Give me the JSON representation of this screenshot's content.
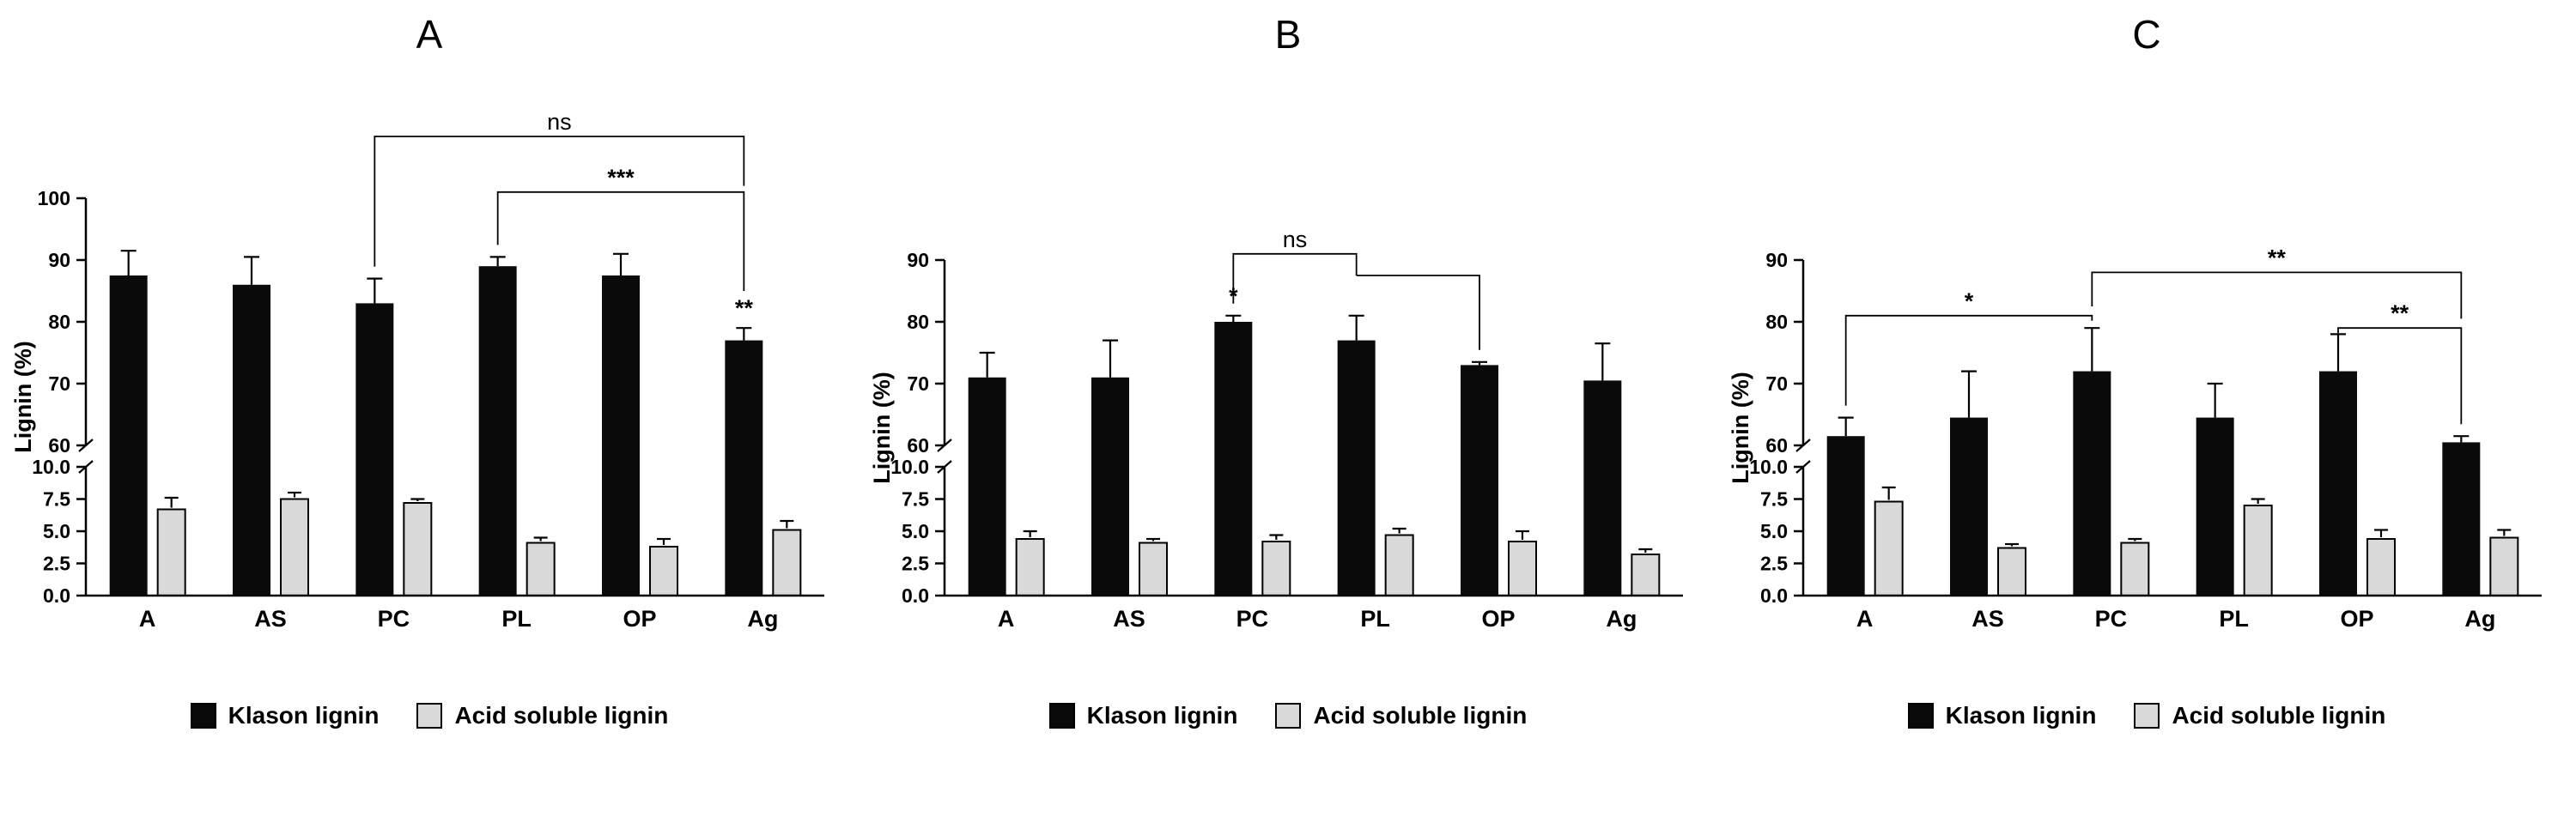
{
  "page": {
    "background": "#ffffff"
  },
  "colors": {
    "klason": "#0a0a0a",
    "acid_soluble": "#d9d9d9",
    "axis": "#000000"
  },
  "chart_data": [
    {
      "type": "bar",
      "title": "A",
      "ylabel": "Lignin (%)",
      "categories": [
        "A",
        "AS",
        "PC",
        "PL",
        "OP",
        "Ag"
      ],
      "broken_axis": {
        "lower": {
          "range": [
            0,
            10
          ],
          "ticks": [
            0,
            2.5,
            5,
            7.5,
            10
          ],
          "tick_labels": [
            "0.0",
            "2.5",
            "5.0",
            "7.5",
            "10.0"
          ]
        },
        "upper": {
          "range": [
            60,
            100
          ],
          "ticks": [
            60,
            70,
            80,
            90,
            100
          ],
          "tick_labels": [
            "60",
            "70",
            "80",
            "90",
            "100"
          ]
        }
      },
      "series": [
        {
          "name": "Klason lignin",
          "axis": "upper",
          "color": "#0a0a0a",
          "values": [
            87.5,
            86,
            83,
            89,
            87.5,
            77
          ],
          "errors": [
            4,
            4.5,
            4,
            1.5,
            3.5,
            2
          ]
        },
        {
          "name": "Acid soluble lignin",
          "axis": "lower",
          "color": "#d9d9d9",
          "values": [
            6.7,
            7.5,
            7.2,
            4.1,
            3.8,
            5.1
          ],
          "errors": [
            0.9,
            0.5,
            0.3,
            0.4,
            0.6,
            0.7
          ]
        }
      ],
      "bar_labels": [
        {
          "category": "Ag",
          "text": "**"
        }
      ],
      "brackets": [
        {
          "from": "PC",
          "to": "Ag",
          "label": "ns",
          "y": 110,
          "to_drop_until": 102
        },
        {
          "from": "PL",
          "to": "Ag",
          "label": "***",
          "y": 101,
          "to_drop_until": 85
        }
      ],
      "legend": [
        "Klason lignin",
        "Acid soluble lignin"
      ]
    },
    {
      "type": "bar",
      "title": "B",
      "ylabel": "Lignin (%)",
      "categories": [
        "A",
        "AS",
        "PC",
        "PL",
        "OP",
        "Ag"
      ],
      "broken_axis": {
        "lower": {
          "range": [
            0,
            10
          ],
          "ticks": [
            0,
            2.5,
            5,
            7.5,
            10
          ],
          "tick_labels": [
            "0.0",
            "2.5",
            "5.0",
            "7.5",
            "10.0"
          ]
        },
        "upper": {
          "range": [
            60,
            90
          ],
          "ticks": [
            60,
            70,
            80,
            90
          ],
          "tick_labels": [
            "60",
            "70",
            "80",
            "90"
          ]
        }
      },
      "series": [
        {
          "name": "Klason lignin",
          "axis": "upper",
          "color": "#0a0a0a",
          "values": [
            71,
            71,
            80,
            77,
            73,
            70.5
          ],
          "errors": [
            4,
            6,
            1,
            4,
            0.5,
            6
          ]
        },
        {
          "name": "Acid soluble lignin",
          "axis": "lower",
          "color": "#d9d9d9",
          "values": [
            4.4,
            4.1,
            4.2,
            4.7,
            4.2,
            3.2
          ],
          "errors": [
            0.6,
            0.3,
            0.5,
            0.5,
            0.8,
            0.4
          ]
        }
      ],
      "bar_labels": [
        {
          "category": "PC",
          "text": "*"
        }
      ],
      "brackets": [
        {
          "from": "PC",
          "to": "PL",
          "label": "ns",
          "y": 91,
          "to_drop_until": 87.5
        },
        {
          "from": "PL",
          "to": "OP",
          "label": "",
          "y": 87.5,
          "from_drop_until": 87.5
        }
      ],
      "legend": [
        "Klason lignin",
        "Acid soluble lignin"
      ]
    },
    {
      "type": "bar",
      "title": "C",
      "ylabel": "Lignin (%)",
      "categories": [
        "A",
        "AS",
        "PC",
        "PL",
        "OP",
        "Ag"
      ],
      "broken_axis": {
        "lower": {
          "range": [
            0,
            10
          ],
          "ticks": [
            0,
            2.5,
            5,
            7.5,
            10
          ],
          "tick_labels": [
            "0.0",
            "2.5",
            "5.0",
            "7.5",
            "10.0"
          ]
        },
        "upper": {
          "range": [
            60,
            90
          ],
          "ticks": [
            60,
            70,
            80,
            90
          ],
          "tick_labels": [
            "60",
            "70",
            "80",
            "90"
          ]
        }
      },
      "series": [
        {
          "name": "Klason lignin",
          "axis": "upper",
          "color": "#0a0a0a",
          "values": [
            61.5,
            64.5,
            72,
            64.5,
            72,
            60.5
          ],
          "errors": [
            3,
            7.5,
            7,
            5.5,
            6,
            1
          ]
        },
        {
          "name": "Acid soluble lignin",
          "axis": "lower",
          "color": "#d9d9d9",
          "values": [
            7.3,
            3.7,
            4.1,
            7.0,
            4.4,
            4.5
          ],
          "errors": [
            1.1,
            0.3,
            0.3,
            0.5,
            0.7,
            0.6
          ]
        }
      ],
      "bar_labels": [],
      "brackets": [
        {
          "from": "A",
          "to": "PC",
          "label": "*",
          "y": 81
        },
        {
          "from": "PC",
          "to": "Ag",
          "label": "**",
          "y": 88,
          "from_drop_until": 82.5,
          "to_drop_until": 80.5
        },
        {
          "from": "OP",
          "to": "Ag",
          "label": "**",
          "y": 79
        }
      ],
      "legend": [
        "Klason lignin",
        "Acid soluble lignin"
      ]
    }
  ]
}
